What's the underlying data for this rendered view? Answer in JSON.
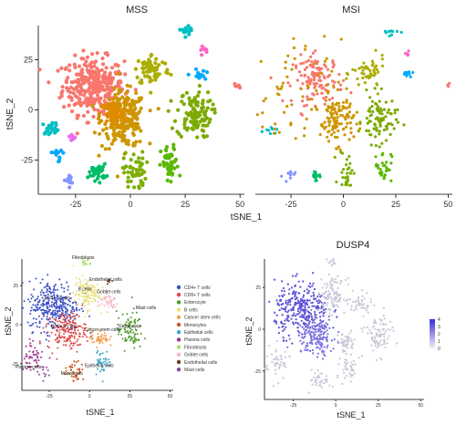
{
  "chart_data": [
    {
      "type": "scatter",
      "title": "MSS",
      "xlabel": "tSNE_1",
      "ylabel": "tSNE_2",
      "xlim": [
        -42,
        52
      ],
      "ylim": [
        -42,
        42
      ],
      "x_ticks": [
        "-25",
        "0",
        "25",
        "50"
      ],
      "x_tick_values": [
        -25,
        0,
        25,
        50
      ],
      "y_ticks": [
        "25",
        "0",
        "-25"
      ],
      "y_tick_values": [
        25,
        0,
        -25
      ],
      "clusters": [
        {
          "color": "#f8766d",
          "cx": -17,
          "cy": 12,
          "sx": 7,
          "sy": 7,
          "n": 320
        },
        {
          "color": "#cd9600",
          "cx": -3,
          "cy": -5,
          "sx": 5,
          "sy": 7,
          "n": 230
        },
        {
          "color": "#e08a00",
          "cx": -8,
          "cy": -2,
          "sx": 3,
          "sy": 3,
          "n": 60
        },
        {
          "color": "#abad00",
          "cx": 10,
          "cy": 20,
          "sx": 4,
          "sy": 4,
          "n": 70
        },
        {
          "color": "#7caa00",
          "cx": 29,
          "cy": -2,
          "sx": 4,
          "sy": 6,
          "n": 110
        },
        {
          "color": "#7cae00",
          "cx": 2,
          "cy": -31,
          "sx": 2.5,
          "sy": 5,
          "n": 55
        },
        {
          "color": "#5cb800",
          "cx": 18,
          "cy": -28,
          "sx": 2,
          "sy": 5,
          "n": 50
        },
        {
          "color": "#00be67",
          "cx": -15,
          "cy": -31,
          "sx": 2,
          "sy": 2,
          "n": 40
        },
        {
          "color": "#00bfc4",
          "cx": -36,
          "cy": -9,
          "sx": 2,
          "sy": 1.5,
          "n": 22
        },
        {
          "color": "#00a9ff",
          "cx": -33,
          "cy": -22,
          "sx": 1.5,
          "sy": 2,
          "n": 12
        },
        {
          "color": "#00a9ff",
          "cx": 31,
          "cy": 17,
          "sx": 1.5,
          "sy": 1.5,
          "n": 14
        },
        {
          "color": "#8494ff",
          "cx": -28,
          "cy": -35,
          "sx": 1.5,
          "sy": 1.5,
          "n": 12
        },
        {
          "color": "#00bfc4",
          "cx": 26,
          "cy": 40,
          "sx": 2,
          "sy": 1.2,
          "n": 18
        },
        {
          "color": "#e76bf3",
          "cx": -27,
          "cy": -14,
          "sx": 1,
          "sy": 1,
          "n": 8
        },
        {
          "color": "#ff61cc",
          "cx": 33,
          "cy": 30,
          "sx": 1,
          "sy": 1,
          "n": 7
        },
        {
          "color": "#f8766d",
          "cx": 49,
          "cy": 12,
          "sx": 0.8,
          "sy": 0.6,
          "n": 5
        }
      ]
    },
    {
      "type": "scatter",
      "title": "MSI",
      "xlabel": "",
      "ylabel": "",
      "xlim": [
        -42,
        52
      ],
      "ylim": [
        -42,
        42
      ],
      "x_ticks": [
        "-25",
        "0",
        "25",
        "50"
      ],
      "x_tick_values": [
        -25,
        0,
        25,
        50
      ],
      "clusters": [
        {
          "color": "#f8766d",
          "cx": -12,
          "cy": 15,
          "sx": 6,
          "sy": 6,
          "n": 120
        },
        {
          "color": "#cd9600",
          "cx": -3,
          "cy": -5,
          "sx": 4,
          "sy": 6,
          "n": 110
        },
        {
          "color": "#abad00",
          "cx": 12,
          "cy": 18,
          "sx": 4,
          "sy": 4,
          "n": 50
        },
        {
          "color": "#7caa00",
          "cx": 17,
          "cy": -5,
          "sx": 4,
          "sy": 6,
          "n": 85
        },
        {
          "color": "#7cae00",
          "cx": 2,
          "cy": -30,
          "sx": 2,
          "sy": 5,
          "n": 30
        },
        {
          "color": "#5cb800",
          "cx": 19,
          "cy": -28,
          "sx": 2,
          "sy": 4,
          "n": 30
        },
        {
          "color": "#00be67",
          "cx": -13,
          "cy": -33,
          "sx": 1.5,
          "sy": 1.5,
          "n": 16
        },
        {
          "color": "#00bfc4",
          "cx": -35,
          "cy": -9,
          "sx": 1.5,
          "sy": 1.2,
          "n": 8
        },
        {
          "color": "#00a9ff",
          "cx": 30,
          "cy": 17,
          "sx": 1.5,
          "sy": 1.5,
          "n": 10
        },
        {
          "color": "#8494ff",
          "cx": -26,
          "cy": -33,
          "sx": 1.5,
          "sy": 1.5,
          "n": 10
        },
        {
          "color": "#00bfc4",
          "cx": 22,
          "cy": 39,
          "sx": 2,
          "sy": 1.5,
          "n": 10
        },
        {
          "color": "#ff61cc",
          "cx": 30,
          "cy": 28,
          "sx": 1,
          "sy": 1,
          "n": 5
        },
        {
          "color": "#f8766d",
          "cx": 50,
          "cy": 12,
          "sx": 0.8,
          "sy": 0.6,
          "n": 4
        },
        {
          "color": "#cd9600",
          "cx": -25,
          "cy": 5,
          "sx": 12,
          "sy": 15,
          "n": 70
        }
      ]
    },
    {
      "type": "scatter",
      "title": "",
      "xlabel": "tSNE_1",
      "ylabel": "tSNE_2",
      "xlim": [
        -42,
        52
      ],
      "ylim": [
        -42,
        42
      ],
      "x_ticks": [
        "-25",
        "0",
        "25",
        "50"
      ],
      "x_tick_values": [
        -25,
        0,
        25,
        50
      ],
      "y_ticks": [
        "25",
        "0",
        "-25"
      ],
      "y_tick_values": [
        25,
        0,
        -25
      ],
      "legend": [
        {
          "label": "CD4+ T cells",
          "color": "#3a4fc6"
        },
        {
          "label": "CD8+ T cells",
          "color": "#e04a4a"
        },
        {
          "label": "Enterocyte",
          "color": "#4e9a2a"
        },
        {
          "label": "B cells",
          "color": "#e7e07a"
        },
        {
          "label": "Cancer stem cells",
          "color": "#f0a050"
        },
        {
          "label": "Monocytes",
          "color": "#c2581d"
        },
        {
          "label": "Epithelial cells",
          "color": "#3aa7c9"
        },
        {
          "label": "Plasma cells",
          "color": "#a0338c"
        },
        {
          "label": "Fibroblasts",
          "color": "#a8e06a"
        },
        {
          "label": "Goblet cells",
          "color": "#f4b7c8"
        },
        {
          "label": "Endothelial cells",
          "color": "#6a3a1a"
        },
        {
          "label": "Mast cells",
          "color": "#8a4aa0"
        }
      ],
      "annotations": [
        {
          "label": "CD4+ T cells",
          "x": -20,
          "y": 16
        },
        {
          "label": "B cells",
          "x": -3,
          "y": 22
        },
        {
          "label": "Goblet cells",
          "x": 12,
          "y": 20
        },
        {
          "label": "Fibroblasts",
          "x": -4,
          "y": 42
        },
        {
          "label": "Endothelial cells",
          "x": 10,
          "y": 28
        },
        {
          "label": "Mast cells",
          "x": 35,
          "y": 10
        },
        {
          "label": "CD8+ T cells",
          "x": -16,
          "y": -2
        },
        {
          "label": "Cancer stem cells",
          "x": 8,
          "y": -4
        },
        {
          "label": "Enterocyte",
          "x": 25,
          "y": -2
        },
        {
          "label": "Plasma cells",
          "x": -38,
          "y": -28
        },
        {
          "label": "Monocytes",
          "x": -11,
          "y": -32
        },
        {
          "label": "Epithelial cells",
          "x": 6,
          "y": -27
        }
      ],
      "clusters": [
        {
          "color": "#3a4fc6",
          "cx": -22,
          "cy": 12,
          "sx": 8,
          "sy": 8,
          "n": 320
        },
        {
          "color": "#e04a4a",
          "cx": -14,
          "cy": -4,
          "sx": 6,
          "sy": 6,
          "n": 180
        },
        {
          "color": "#e7e07a",
          "cx": -2,
          "cy": 20,
          "sx": 4,
          "sy": 5,
          "n": 120
        },
        {
          "color": "#f4b7c8",
          "cx": 12,
          "cy": 15,
          "sx": 3,
          "sy": 3,
          "n": 40
        },
        {
          "color": "#4e9a2a",
          "cx": 25,
          "cy": -4,
          "sx": 4,
          "sy": 6,
          "n": 90
        },
        {
          "color": "#f0a050",
          "cx": 6,
          "cy": -8,
          "sx": 3,
          "sy": 3,
          "n": 50
        },
        {
          "color": "#c2581d",
          "cx": -9,
          "cy": -30,
          "sx": 3,
          "sy": 3,
          "n": 40
        },
        {
          "color": "#3aa7c9",
          "cx": 8,
          "cy": -24,
          "sx": 2.5,
          "sy": 4,
          "n": 40
        },
        {
          "color": "#a0338c",
          "cx": -35,
          "cy": -20,
          "sx": 4,
          "sy": 5,
          "n": 50
        },
        {
          "color": "#a8e06a",
          "cx": -2,
          "cy": 40,
          "sx": 1.5,
          "sy": 1.5,
          "n": 14
        },
        {
          "color": "#6a3a1a",
          "cx": 12,
          "cy": 28,
          "sx": 1,
          "sy": 1,
          "n": 6
        },
        {
          "color": "#8a4aa0",
          "cx": -30,
          "cy": -30,
          "sx": 2,
          "sy": 2,
          "n": 14
        }
      ]
    },
    {
      "type": "scatter",
      "title": "DUSP4",
      "xlabel": "tSNE_1",
      "ylabel": "tSNE_2",
      "xlim": [
        -42,
        52
      ],
      "ylim": [
        -42,
        42
      ],
      "x_ticks": [
        "-25",
        "0",
        "25",
        "50"
      ],
      "x_tick_values": [
        -25,
        0,
        25,
        50
      ],
      "y_ticks": [
        "25",
        "0",
        "-25"
      ],
      "y_tick_values": [
        25,
        0,
        -25
      ],
      "colorbar": {
        "ticks": [
          "4",
          "3",
          "2",
          "1",
          "0"
        ],
        "low": "#f0f0f5",
        "high": "#3a2fd6"
      },
      "clusters": [
        {
          "color": "#5a4fd8",
          "cx": -20,
          "cy": 12,
          "sx": 8,
          "sy": 8,
          "n": 300
        },
        {
          "color": "#7a70e0",
          "cx": -12,
          "cy": -4,
          "sx": 6,
          "sy": 6,
          "n": 160
        },
        {
          "color": "#c8c8d8",
          "cx": -2,
          "cy": 20,
          "sx": 4,
          "sy": 5,
          "n": 120
        },
        {
          "color": "#c8c8d8",
          "cx": 25,
          "cy": -4,
          "sx": 4,
          "sy": 6,
          "n": 90
        },
        {
          "color": "#c8c8d8",
          "cx": 6,
          "cy": -8,
          "sx": 3,
          "sy": 3,
          "n": 50
        },
        {
          "color": "#c8c8d8",
          "cx": -9,
          "cy": -30,
          "sx": 3,
          "sy": 3,
          "n": 40
        },
        {
          "color": "#c8c8d8",
          "cx": 8,
          "cy": -24,
          "sx": 2.5,
          "sy": 4,
          "n": 40
        },
        {
          "color": "#c8c8d8",
          "cx": -35,
          "cy": -20,
          "sx": 4,
          "sy": 5,
          "n": 50
        },
        {
          "color": "#c8c8d8",
          "cx": 15,
          "cy": 15,
          "sx": 3,
          "sy": 3,
          "n": 40
        },
        {
          "color": "#c8c8d8",
          "cx": -2,
          "cy": 40,
          "sx": 1.5,
          "sy": 1.5,
          "n": 12
        }
      ]
    }
  ]
}
